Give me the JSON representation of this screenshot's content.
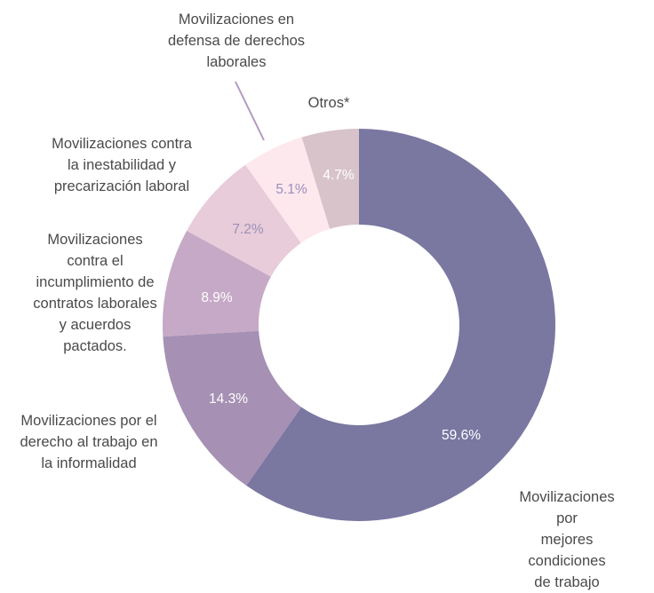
{
  "chart_data": {
    "type": "donut",
    "labels": [
      "Movilizaciones por\nmejores condiciones\nde trabajo",
      "Movilizaciones por el\nderecho al trabajo en\nla informalidad",
      "Movilizaciones\ncontra el\nincumplimiento de\ncontratos laborales\ny acuerdos\npactados.",
      "Movilizaciones contra\nla inestabilidad y\nprecarización laboral",
      "Movilizaciones en\ndefensa de derechos\nlaborales",
      "Otros*"
    ],
    "values": [
      59.6,
      14.3,
      8.9,
      7.2,
      5.1,
      4.7
    ],
    "value_labels": [
      "59.6%",
      "14.3%",
      "8.9%",
      "7.2%",
      "5.1%",
      "4.7%"
    ],
    "colors": [
      "#7a77a1",
      "#a690b4",
      "#c6a9c6",
      "#e8ccd9",
      "#fde8ee",
      "#d8c3cb"
    ],
    "value_label_colors": [
      "#ffffff",
      "#ffffff",
      "#ffffff",
      "#9b90ba",
      "#9b90ba",
      "#ffffff"
    ]
  }
}
